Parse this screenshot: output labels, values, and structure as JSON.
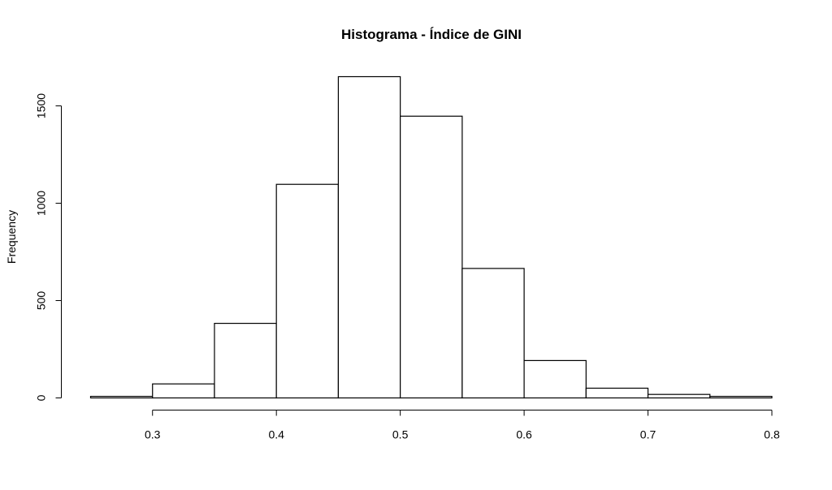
{
  "chart_data": {
    "type": "bar",
    "subtype": "histogram",
    "title": "Histograma - Índice de GINI",
    "xlabel": "",
    "ylabel": "Frequency",
    "bins": [
      {
        "start": 0.25,
        "end": 0.3,
        "count": 8
      },
      {
        "start": 0.3,
        "end": 0.35,
        "count": 72
      },
      {
        "start": 0.35,
        "end": 0.4,
        "count": 383
      },
      {
        "start": 0.4,
        "end": 0.45,
        "count": 1097
      },
      {
        "start": 0.45,
        "end": 0.5,
        "count": 1650
      },
      {
        "start": 0.5,
        "end": 0.55,
        "count": 1447
      },
      {
        "start": 0.55,
        "end": 0.6,
        "count": 665
      },
      {
        "start": 0.6,
        "end": 0.65,
        "count": 192
      },
      {
        "start": 0.65,
        "end": 0.7,
        "count": 50
      },
      {
        "start": 0.7,
        "end": 0.75,
        "count": 18
      },
      {
        "start": 0.75,
        "end": 0.8,
        "count": 8
      }
    ],
    "xlim": [
      0.25,
      0.8
    ],
    "ylim": [
      0,
      1650
    ],
    "x_ticks": [
      0.3,
      0.4,
      0.5,
      0.6,
      0.7,
      0.8
    ],
    "x_tick_labels": [
      "0.3",
      "0.4",
      "0.5",
      "0.6",
      "0.7",
      "0.8"
    ],
    "y_ticks": [
      0,
      500,
      1000,
      1500
    ],
    "y_tick_labels": [
      "0",
      "500",
      "1000",
      "1500"
    ],
    "grid": false,
    "legend": "none",
    "colors": {
      "bar_fill": "#ffffff",
      "bar_stroke": "#000000"
    }
  }
}
